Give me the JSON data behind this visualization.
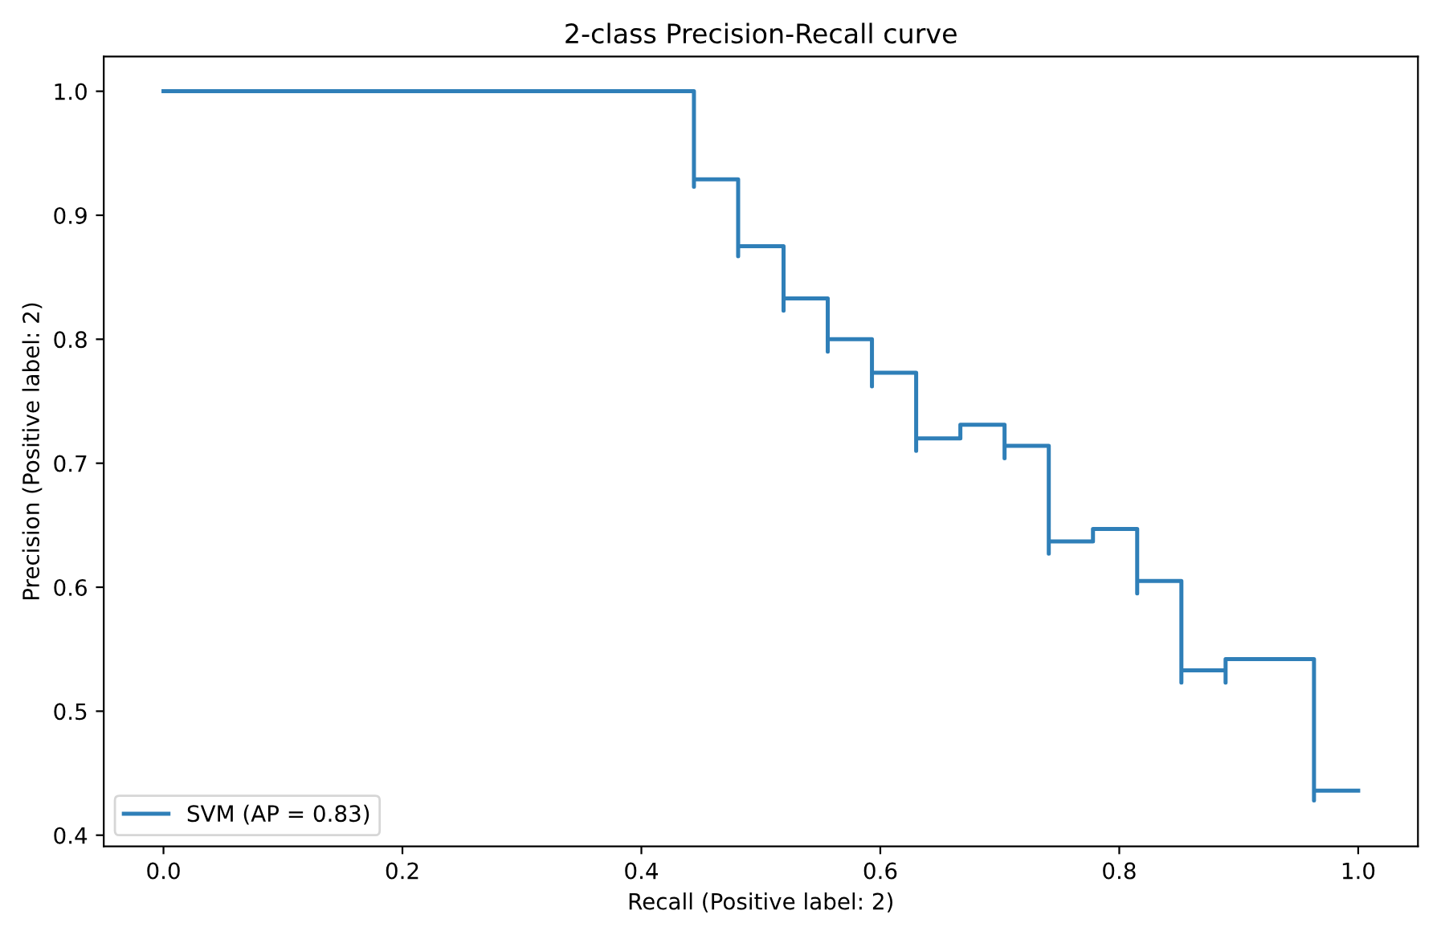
{
  "chart_data": {
    "type": "step",
    "title": "2-class Precision-Recall curve",
    "xlabel": "Recall (Positive label: 2)",
    "ylabel": "Precision (Positive label: 2)",
    "series": [
      {
        "name": "SVM (AP = 0.83)",
        "color": "#2f7fb8",
        "x": [
          1.0,
          0.963,
          0.963,
          0.889,
          0.889,
          0.852,
          0.852,
          0.815,
          0.815,
          0.778,
          0.741,
          0.741,
          0.704,
          0.704,
          0.667,
          0.63,
          0.63,
          0.593,
          0.593,
          0.556,
          0.556,
          0.519,
          0.519,
          0.481,
          0.481,
          0.444,
          0.444,
          0.0
        ],
        "values": [
          0.436,
          0.428,
          0.542,
          0.523,
          0.533,
          0.523,
          0.605,
          0.595,
          0.647,
          0.637,
          0.627,
          0.714,
          0.704,
          0.731,
          0.72,
          0.71,
          0.773,
          0.762,
          0.8,
          0.79,
          0.833,
          0.823,
          0.875,
          0.867,
          0.929,
          0.923,
          1.0,
          1.0
        ]
      }
    ],
    "xlim": [
      -0.05,
      1.05
    ],
    "xticks": [
      {
        "value": 0,
        "label": "0.0"
      },
      0.2,
      0.4,
      0.6,
      0.8,
      {
        "value": 1,
        "label": "1.0"
      }
    ],
    "ylim": [
      0.391,
      1.028
    ],
    "yticks": [
      0.4,
      0.5,
      0.6,
      0.7,
      0.8,
      0.9,
      {
        "value": 1,
        "label": "1.0"
      }
    ],
    "legend": "lower left",
    "grid": false
  }
}
